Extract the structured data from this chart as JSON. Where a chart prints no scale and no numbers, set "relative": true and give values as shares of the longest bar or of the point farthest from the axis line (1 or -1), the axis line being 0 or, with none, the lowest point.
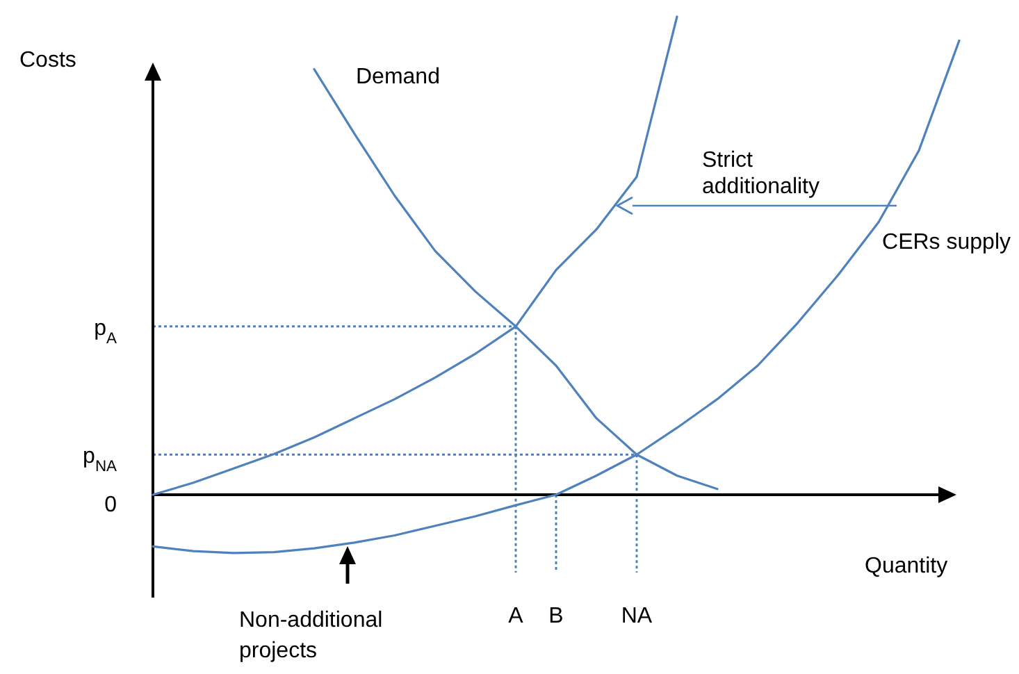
{
  "chart_data": {
    "type": "line",
    "relative": true,
    "ylabel": "Costs",
    "xlabel": "Quantity",
    "line_style": "solid",
    "categories": [
      null,
      null,
      null,
      null,
      null,
      null,
      null,
      null,
      null,
      "A",
      "B",
      null,
      "NA",
      null,
      null,
      null,
      null,
      null,
      null,
      null,
      null
    ],
    "series": [
      {
        "name": "Demand",
        "color": "#4f81bd",
        "values": [
          null,
          null,
          null,
          null,
          0.89,
          0.755,
          0.625,
          0.51,
          0.425,
          0.352,
          0.27,
          0.16,
          0.084,
          0.04,
          0.012,
          null,
          null,
          null,
          null,
          null,
          null
        ]
      },
      {
        "name": "Strict additionality",
        "color": "#4f81bd",
        "values": [
          0,
          0.025,
          0.055,
          0.085,
          0.12,
          0.16,
          0.2,
          0.245,
          0.295,
          0.352,
          0.47,
          0.555,
          0.665,
          1.0,
          null,
          null,
          null,
          null,
          null,
          null,
          null
        ]
      },
      {
        "name": "CERs supply",
        "color": "#4f81bd",
        "values": [
          -0.108,
          -0.118,
          -0.122,
          -0.12,
          -0.112,
          -0.1,
          -0.085,
          -0.065,
          -0.045,
          -0.022,
          0,
          0.04,
          0.084,
          0.14,
          0.2,
          0.27,
          0.36,
          0.46,
          0.57,
          0.72,
          0.95
        ]
      }
    ],
    "ref_lines": [
      {
        "axis": "y",
        "value": 0.352,
        "label": "p$_{A}$",
        "line_style": "dotted",
        "color": "#4f81bd"
      },
      {
        "axis": "y",
        "value": 0.084,
        "label": "p$_{NA}$",
        "line_style": "dotted",
        "color": "#4f81bd"
      },
      {
        "axis": "x",
        "value": "A",
        "line_style": "dotted",
        "color": "#4f81bd"
      },
      {
        "axis": "x",
        "value": "B",
        "line_style": "dotted",
        "color": "#4f81bd"
      },
      {
        "axis": "x",
        "value": "NA",
        "line_style": "dotted",
        "color": "#4f81bd"
      }
    ],
    "annotations": [
      "0",
      "Non-additional projects"
    ]
  }
}
